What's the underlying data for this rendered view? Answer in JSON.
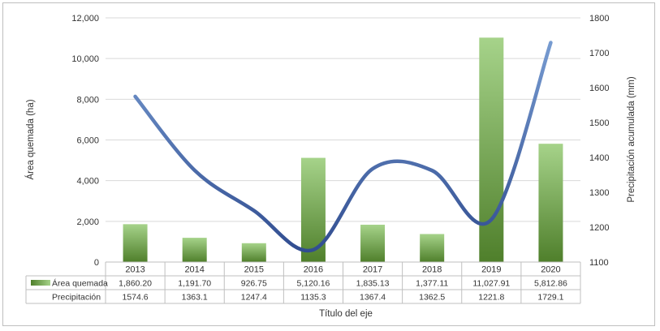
{
  "chart_data": {
    "type": "bar+line",
    "categories": [
      "2013",
      "2014",
      "2015",
      "2016",
      "2017",
      "2018",
      "2019",
      "2020"
    ],
    "series": [
      {
        "name": "Área quemada",
        "type": "bar",
        "axis": "left",
        "values": [
          1860.2,
          1191.7,
          926.75,
          5120.16,
          1835.13,
          1377.11,
          11027.91,
          5812.86
        ],
        "labels": [
          "1,860.20",
          "1,191.70",
          "926.75",
          "5,120.16",
          "1,835.13",
          "1,377.11",
          "11,027.91",
          "5,812.86"
        ],
        "color_top": "#a6d38a",
        "color_bottom": "#4f7f2b"
      },
      {
        "name": "Precipitación",
        "type": "line",
        "axis": "right",
        "values": [
          1574.6,
          1363.1,
          1247.4,
          1135.3,
          1367.4,
          1362.5,
          1221.8,
          1729.1
        ],
        "labels": [
          "1574.6",
          "1363.1",
          "1247.4",
          "1135.3",
          "1367.4",
          "1362.5",
          "1221.8",
          "1729.1"
        ],
        "color_light": "#7a9fd4",
        "color_dark": "#2e4a8e"
      }
    ],
    "xlabel": "Título del eje",
    "ylabel": "Área quemada (ha)",
    "y2label": "Precipitación acumulada (mm)",
    "ylim": [
      0,
      12000
    ],
    "y2lim": [
      1100,
      1800
    ],
    "yticks": [
      "0",
      "2,000",
      "4,000",
      "6,000",
      "8,000",
      "10,000",
      "12,000"
    ],
    "y2ticks": [
      "1100",
      "1200",
      "1300",
      "1400",
      "1500",
      "1600",
      "1700",
      "1800"
    ],
    "grid": true,
    "legend": "data-table"
  }
}
